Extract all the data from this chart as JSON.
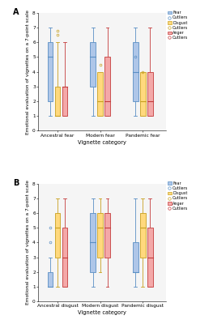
{
  "panel_A": {
    "title": "A",
    "xlabel": "Vignette category",
    "ylabel": "Emotional evaluation of vignettes on a 7-point scale",
    "ylim": [
      0,
      8
    ],
    "yticks": [
      0,
      1,
      2,
      3,
      4,
      5,
      6,
      7,
      8
    ],
    "categories": [
      "Ancestral fear",
      "Modern fear",
      "Pandemic fear"
    ],
    "fear": {
      "color": "#aec6e8",
      "edge": "#5a8fc4",
      "boxes": [
        {
          "q1": 2,
          "med": 5,
          "q3": 6,
          "whislo": 1,
          "whishi": 7,
          "fliers_high": [],
          "fliers_low": []
        },
        {
          "q1": 3,
          "med": 5,
          "q3": 6,
          "whislo": 1,
          "whishi": 7,
          "fliers_high": [],
          "fliers_low": []
        },
        {
          "q1": 2,
          "med": 4,
          "q3": 6,
          "whislo": 1,
          "whishi": 7,
          "fliers_high": [
            5.0
          ],
          "fliers_low": []
        }
      ]
    },
    "disgust": {
      "color": "#ffd97d",
      "edge": "#c8a020",
      "boxes": [
        {
          "q1": 1,
          "med": 1,
          "q3": 3,
          "whislo": 1,
          "whishi": 6,
          "fliers_high": [
            6.8,
            6.5
          ],
          "fliers_low": []
        },
        {
          "q1": 1,
          "med": 2,
          "q3": 4,
          "whislo": 1,
          "whishi": 3,
          "fliers_high": [
            4.5
          ],
          "fliers_low": []
        },
        {
          "q1": 1,
          "med": 2,
          "q3": 4,
          "whislo": 1,
          "whishi": 3,
          "fliers_high": [
            4.0
          ],
          "fliers_low": []
        }
      ]
    },
    "anger": {
      "color": "#f4a8a8",
      "edge": "#c43c3c",
      "boxes": [
        {
          "q1": 1,
          "med": 3,
          "q3": 3,
          "whislo": 1,
          "whishi": 6,
          "fliers_high": [],
          "fliers_low": []
        },
        {
          "q1": 1,
          "med": 2,
          "q3": 5,
          "whislo": 1,
          "whishi": 7,
          "fliers_high": [],
          "fliers_low": []
        },
        {
          "q1": 1,
          "med": 2,
          "q3": 4,
          "whislo": 1,
          "whishi": 7,
          "fliers_high": [],
          "fliers_low": []
        }
      ]
    }
  },
  "panel_B": {
    "title": "B",
    "xlabel": "Vignette category",
    "ylabel": "Emotional evaluation of vignettes on a 7-point scale",
    "ylim": [
      0,
      8
    ],
    "yticks": [
      0,
      1,
      2,
      3,
      4,
      5,
      6,
      7,
      8
    ],
    "categories": [
      "Ancestral disgust",
      "Modern disgust",
      "Pandemic disgust"
    ],
    "fear": {
      "color": "#aec6e8",
      "edge": "#5a8fc4",
      "boxes": [
        {
          "q1": 1,
          "med": 1,
          "q3": 2,
          "whislo": 1,
          "whishi": 3,
          "fliers_high": [
            5.0,
            4.0
          ],
          "fliers_low": []
        },
        {
          "q1": 2,
          "med": 4,
          "q3": 6,
          "whislo": 1,
          "whishi": 7,
          "fliers_high": [],
          "fliers_low": []
        },
        {
          "q1": 2,
          "med": 2,
          "q3": 4,
          "whislo": 1,
          "whishi": 7,
          "fliers_high": [],
          "fliers_low": []
        }
      ]
    },
    "disgust": {
      "color": "#ffd97d",
      "edge": "#c8a020",
      "boxes": [
        {
          "q1": 3,
          "med": 5,
          "q3": 6,
          "whislo": 1,
          "whishi": 7,
          "fliers_high": [],
          "fliers_low": []
        },
        {
          "q1": 3,
          "med": 5,
          "q3": 6,
          "whislo": 2,
          "whishi": 7,
          "fliers_high": [],
          "fliers_low": []
        },
        {
          "q1": 3,
          "med": 5,
          "q3": 6,
          "whislo": 1,
          "whishi": 7,
          "fliers_high": [],
          "fliers_low": []
        }
      ]
    },
    "anger": {
      "color": "#f4a8a8",
      "edge": "#c43c3c",
      "boxes": [
        {
          "q1": 1,
          "med": 3,
          "q3": 5,
          "whislo": 1,
          "whishi": 7,
          "fliers_high": [],
          "fliers_low": []
        },
        {
          "q1": 3,
          "med": 5,
          "q3": 6,
          "whislo": 1,
          "whishi": 7,
          "fliers_high": [],
          "fliers_low": []
        },
        {
          "q1": 1,
          "med": 3,
          "q3": 5,
          "whislo": 1,
          "whishi": 7,
          "fliers_high": [],
          "fliers_low": []
        }
      ]
    }
  },
  "legend": {
    "fear_color": "#aec6e8",
    "fear_edge": "#5a8fc4",
    "disgust_color": "#ffd97d",
    "disgust_edge": "#c8a020",
    "anger_color": "#f4a8a8",
    "anger_edge": "#c43c3c"
  },
  "background": "#f5f5f5",
  "box_width": 0.13,
  "offsets": [
    -0.17,
    0.0,
    0.17
  ]
}
